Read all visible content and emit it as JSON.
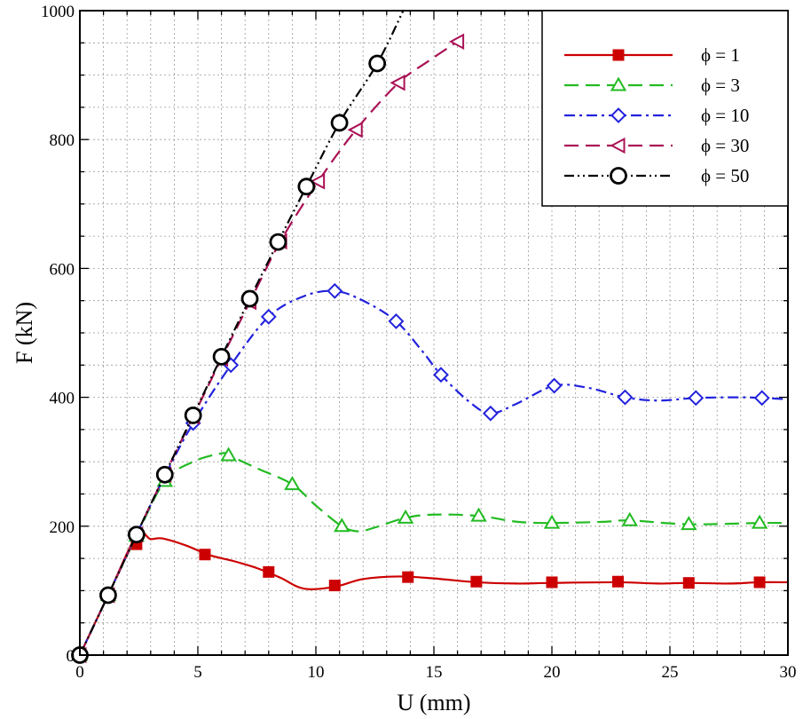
{
  "chart_data": {
    "type": "line",
    "title": "",
    "xlabel": "U (mm)",
    "ylabel": "F (kN)",
    "xlim": [
      0,
      30
    ],
    "ylim": [
      0,
      1000
    ],
    "xticks": [
      0,
      5,
      10,
      15,
      20,
      25,
      30
    ],
    "yticks": [
      0,
      200,
      400,
      600,
      800,
      1000
    ],
    "x_minor_step": 1,
    "y_minor_step": 50,
    "grid": true,
    "legend_position": "top-right",
    "series": [
      {
        "name": "ϕ = 1",
        "color": "#cc0000",
        "dash": "solid",
        "marker": "square",
        "marker_fill": true,
        "curve": [
          [
            0,
            0
          ],
          [
            1.2,
            93
          ],
          [
            2.4,
            185
          ],
          [
            3,
            180
          ],
          [
            3.5,
            181
          ],
          [
            4.5,
            170
          ],
          [
            5.5,
            155
          ],
          [
            6.5,
            146
          ],
          [
            7.5,
            135
          ],
          [
            8.5,
            120
          ],
          [
            9.5,
            103
          ],
          [
            10.8,
            106
          ],
          [
            12,
            118
          ],
          [
            13.5,
            122
          ],
          [
            15,
            119
          ],
          [
            16.8,
            113
          ],
          [
            18.5,
            111
          ],
          [
            20,
            112
          ],
          [
            22.8,
            113
          ],
          [
            24.5,
            111
          ],
          [
            25.8,
            112
          ],
          [
            27.5,
            111
          ],
          [
            28.8,
            113
          ],
          [
            30,
            113
          ]
        ],
        "markers": [
          [
            0,
            0
          ],
          [
            1.2,
            93
          ],
          [
            2.4,
            172
          ],
          [
            5.3,
            156
          ],
          [
            8,
            129
          ],
          [
            10.8,
            108
          ],
          [
            13.9,
            121
          ],
          [
            16.8,
            114
          ],
          [
            20,
            113
          ],
          [
            22.8,
            114
          ],
          [
            25.8,
            112
          ],
          [
            28.8,
            113
          ]
        ]
      },
      {
        "name": "ϕ = 3",
        "color": "#22bb22",
        "dash": "long-dash",
        "marker": "triangle-up",
        "marker_fill": false,
        "curve": [
          [
            0,
            0
          ],
          [
            1.2,
            93
          ],
          [
            2.4,
            185
          ],
          [
            3.6,
            270
          ],
          [
            4.8,
            300
          ],
          [
            6,
            313
          ],
          [
            6.3,
            310
          ],
          [
            7.5,
            290
          ],
          [
            9,
            265
          ],
          [
            10,
            232
          ],
          [
            11.1,
            200
          ],
          [
            11.8,
            192
          ],
          [
            12.5,
            198
          ],
          [
            13.8,
            213
          ],
          [
            15,
            218
          ],
          [
            16.9,
            216
          ],
          [
            18.5,
            207
          ],
          [
            20,
            205
          ],
          [
            22.3,
            207
          ],
          [
            23.3,
            209
          ],
          [
            25.8,
            203
          ],
          [
            28.8,
            205
          ],
          [
            30,
            205
          ]
        ],
        "markers": [
          [
            0,
            0
          ],
          [
            1.2,
            93
          ],
          [
            2.4,
            185
          ],
          [
            3.6,
            270
          ],
          [
            6.3,
            310
          ],
          [
            9,
            265
          ],
          [
            11.1,
            200
          ],
          [
            13.8,
            213
          ],
          [
            16.9,
            216
          ],
          [
            20,
            205
          ],
          [
            23.3,
            209
          ],
          [
            25.8,
            203
          ],
          [
            28.8,
            205
          ]
        ]
      },
      {
        "name": "ϕ = 10",
        "color": "#2222dd",
        "dash": "dash-dot",
        "marker": "diamond",
        "marker_fill": false,
        "curve": [
          [
            0,
            0
          ],
          [
            1.2,
            93
          ],
          [
            2.4,
            187
          ],
          [
            3.6,
            278
          ],
          [
            4.8,
            360
          ],
          [
            6.4,
            450
          ],
          [
            8,
            525
          ],
          [
            9.5,
            557
          ],
          [
            10.8,
            565
          ],
          [
            12,
            550
          ],
          [
            13.4,
            518
          ],
          [
            14.5,
            472
          ],
          [
            15.3,
            435
          ],
          [
            16.5,
            393
          ],
          [
            17.4,
            375
          ],
          [
            18.5,
            390
          ],
          [
            20.1,
            418
          ],
          [
            21.5,
            415
          ],
          [
            23.1,
            400
          ],
          [
            24.5,
            395
          ],
          [
            26.1,
            399
          ],
          [
            28,
            400
          ],
          [
            28.9,
            399
          ],
          [
            30,
            397
          ]
        ],
        "markers": [
          [
            0,
            0
          ],
          [
            1.2,
            93
          ],
          [
            2.4,
            187
          ],
          [
            3.6,
            278
          ],
          [
            4.8,
            360
          ],
          [
            6.4,
            450
          ],
          [
            8,
            525
          ],
          [
            10.8,
            565
          ],
          [
            13.4,
            518
          ],
          [
            15.3,
            435
          ],
          [
            17.4,
            375
          ],
          [
            20.1,
            418
          ],
          [
            23.1,
            400
          ],
          [
            26.1,
            399
          ],
          [
            28.9,
            399
          ]
        ]
      },
      {
        "name": "ϕ = 30",
        "color": "#aa1155",
        "dash": "long-dash",
        "marker": "triangle-left",
        "marker_fill": false,
        "curve": [
          [
            0,
            0
          ],
          [
            1.2,
            93
          ],
          [
            2.4,
            187
          ],
          [
            3.6,
            280
          ],
          [
            4.8,
            370
          ],
          [
            6,
            460
          ],
          [
            7.2,
            548
          ],
          [
            8.5,
            642
          ],
          [
            10.1,
            735
          ],
          [
            11.7,
            815
          ],
          [
            13.5,
            888
          ],
          [
            14.7,
            920
          ],
          [
            16,
            952
          ]
        ],
        "markers": [
          [
            0,
            0
          ],
          [
            1.2,
            93
          ],
          [
            2.4,
            187
          ],
          [
            3.6,
            280
          ],
          [
            4.8,
            370
          ],
          [
            6,
            460
          ],
          [
            7.2,
            548
          ],
          [
            8.5,
            642
          ],
          [
            10.1,
            735
          ],
          [
            11.7,
            815
          ],
          [
            13.5,
            888
          ],
          [
            16,
            952
          ]
        ]
      },
      {
        "name": "ϕ = 50",
        "color": "#000000",
        "dash": "dash-dot-dot",
        "marker": "circle",
        "marker_fill": false,
        "curve": [
          [
            0,
            0
          ],
          [
            1.2,
            93
          ],
          [
            2.4,
            187
          ],
          [
            3.6,
            280
          ],
          [
            4.8,
            372
          ],
          [
            6,
            463
          ],
          [
            7.2,
            553
          ],
          [
            8.4,
            641
          ],
          [
            9.6,
            727
          ],
          [
            11,
            826
          ],
          [
            12.6,
            918
          ],
          [
            13.7,
            1000
          ]
        ],
        "markers": [
          [
            0,
            0
          ],
          [
            1.2,
            93
          ],
          [
            2.4,
            187
          ],
          [
            3.6,
            280
          ],
          [
            4.8,
            372
          ],
          [
            6,
            463
          ],
          [
            7.2,
            553
          ],
          [
            8.4,
            641
          ],
          [
            9.6,
            727
          ],
          [
            11,
            826
          ],
          [
            12.6,
            918
          ]
        ]
      }
    ]
  }
}
